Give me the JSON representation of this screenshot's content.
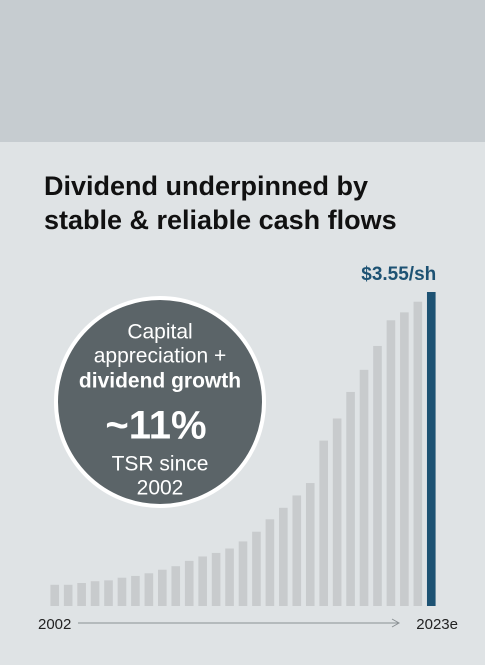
{
  "chart_data": {
    "type": "bar",
    "title": [
      "Dividend underpinned by",
      "stable & reliable cash flows"
    ],
    "annotation": [
      "Capital",
      "appreciation +",
      "dividend growth",
      "~11%",
      "TSR since",
      "2002"
    ],
    "categories": [
      "2002",
      null,
      null,
      null,
      null,
      null,
      null,
      null,
      null,
      null,
      null,
      null,
      null,
      null,
      null,
      null,
      null,
      null,
      null,
      null,
      null,
      null,
      null,
      null,
      null,
      null,
      null,
      null,
      "2023e"
    ],
    "values": [
      0.24,
      0.24,
      0.26,
      0.28,
      0.29,
      0.32,
      0.34,
      0.37,
      0.41,
      0.45,
      0.51,
      0.56,
      0.6,
      0.65,
      0.73,
      0.84,
      0.98,
      1.11,
      1.25,
      1.39,
      1.87,
      2.12,
      2.42,
      2.67,
      2.94,
      3.23,
      3.32,
      3.44,
      3.55
    ],
    "value_labels": [
      null,
      null,
      null,
      null,
      null,
      null,
      null,
      null,
      null,
      null,
      null,
      null,
      null,
      null,
      null,
      null,
      null,
      null,
      null,
      null,
      null,
      null,
      null,
      null,
      null,
      null,
      null,
      null,
      "$3.55/sh"
    ],
    "colors": [
      "#c8cbcd",
      "#c8cbcd",
      "#c8cbcd",
      "#c8cbcd",
      "#c8cbcd",
      "#c8cbcd",
      "#c8cbcd",
      "#c8cbcd",
      "#c8cbcd",
      "#c8cbcd",
      "#c8cbcd",
      "#c8cbcd",
      "#c8cbcd",
      "#c8cbcd",
      "#c8cbcd",
      "#c8cbcd",
      "#c8cbcd",
      "#c8cbcd",
      "#c8cbcd",
      "#c8cbcd",
      "#c8cbcd",
      "#c8cbcd",
      "#c8cbcd",
      "#c8cbcd",
      "#c8cbcd",
      "#c8cbcd",
      "#c8cbcd",
      "#c8cbcd",
      "#1d5273"
    ]
  }
}
